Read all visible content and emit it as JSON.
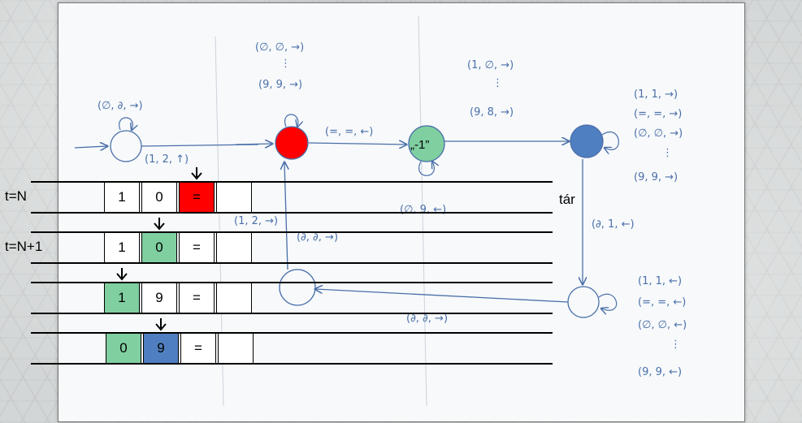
{
  "colors": {
    "red": "#ff0000",
    "green": "#7fcfa0",
    "blue": "#4f7fc0",
    "ink": "#4a6fa8"
  },
  "states": {
    "start_loop": "(∅, ∂, →)",
    "start_exit": "(1, 2, ↑)",
    "red_loop_top": "(∅, ∅, →)",
    "red_loop_dots": "⋮",
    "red_loop_bottom": "(9, 9, →)",
    "red_to_green": "(=, =, ←)",
    "green_label": "„-1”",
    "green_loop": "(∅, 9, ←)",
    "green_to_blue_top": "(1, ∅, →)",
    "green_to_blue_dots": "⋮",
    "green_to_blue_bottom": "(9, 8, →)",
    "blue_loop_1": "(1, 1, →)",
    "blue_loop_2": "(=, =, →)",
    "blue_loop_3": "(∅, ∅, →)",
    "blue_loop_dots": "⋮",
    "blue_loop_4": "(9, 9, →)",
    "blue_down": "(∂, 1, ←)",
    "bottom_loop_1": "(1, 1, ←)",
    "bottom_loop_2": "(=, =, ←)",
    "bottom_loop_3": "(∅, ∅, ←)",
    "bottom_loop_dots": "⋮",
    "bottom_loop_4": "(9, 9, ←)",
    "bottom_to_red": "(∂, ∂, →)",
    "mid_label_1": "(1, 2, →)",
    "mid_label_2": "(∂, ∂, →)"
  },
  "tape": {
    "rows": [
      {
        "label": "t=N",
        "cells": [
          "1",
          "0",
          "=",
          ""
        ],
        "highlight": 2,
        "highlight_color": "#ff0000",
        "head": 2
      },
      {
        "label": "t=N+1",
        "cells": [
          "1",
          "0",
          "=",
          ""
        ],
        "highlight": 1,
        "highlight_color": "#7fcfa0",
        "head": 1
      },
      {
        "label": "",
        "cells": [
          "1",
          "9",
          "=",
          ""
        ],
        "highlight": 0,
        "highlight_color": "#7fcfa0",
        "head": 0
      },
      {
        "label": "",
        "cells": [
          "0",
          "9",
          "=",
          ""
        ],
        "highlight": 0,
        "highlight_color": "#7fcfa0",
        "highlight2": 1,
        "highlight2_color": "#4f7fc0",
        "head": 1
      }
    ],
    "tar_label": "tár"
  }
}
